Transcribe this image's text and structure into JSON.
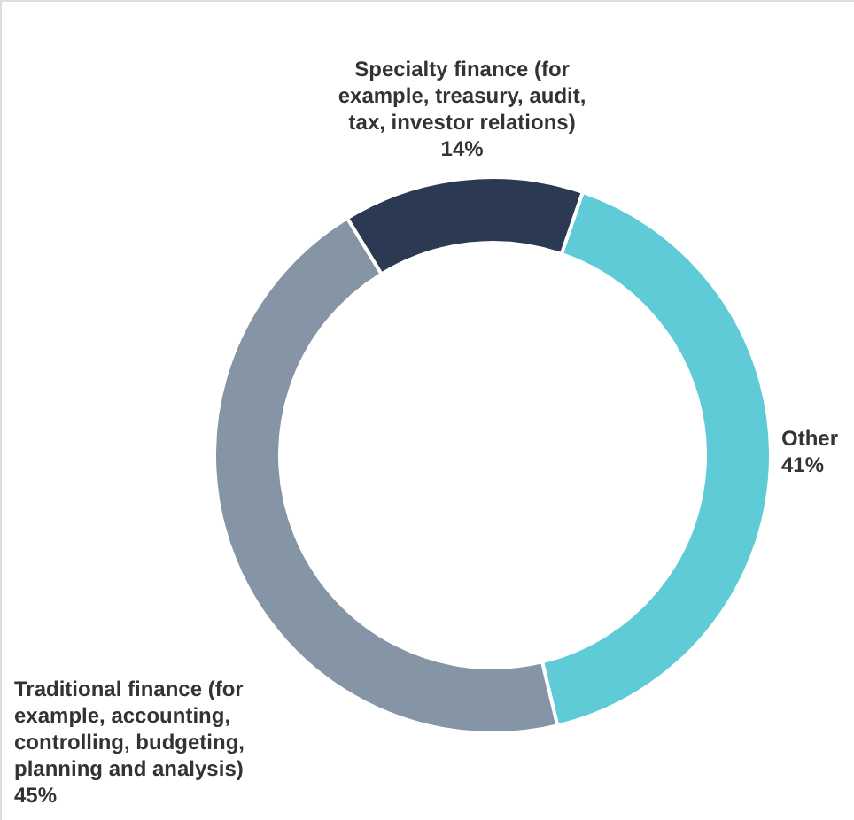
{
  "chart_data": {
    "type": "donut",
    "categories": [
      "Other",
      "Traditional finance (for example, accounting, controlling, budgeting, planning and analysis)",
      "Specialty finance (for example, treasury, audit, tax, investor relations)"
    ],
    "values": [
      41,
      45,
      14
    ],
    "colors": [
      "#5ecbd6",
      "#8695a5",
      "#2b3a52"
    ],
    "value_labels": [
      "41%",
      "45%",
      "14%"
    ]
  }
}
